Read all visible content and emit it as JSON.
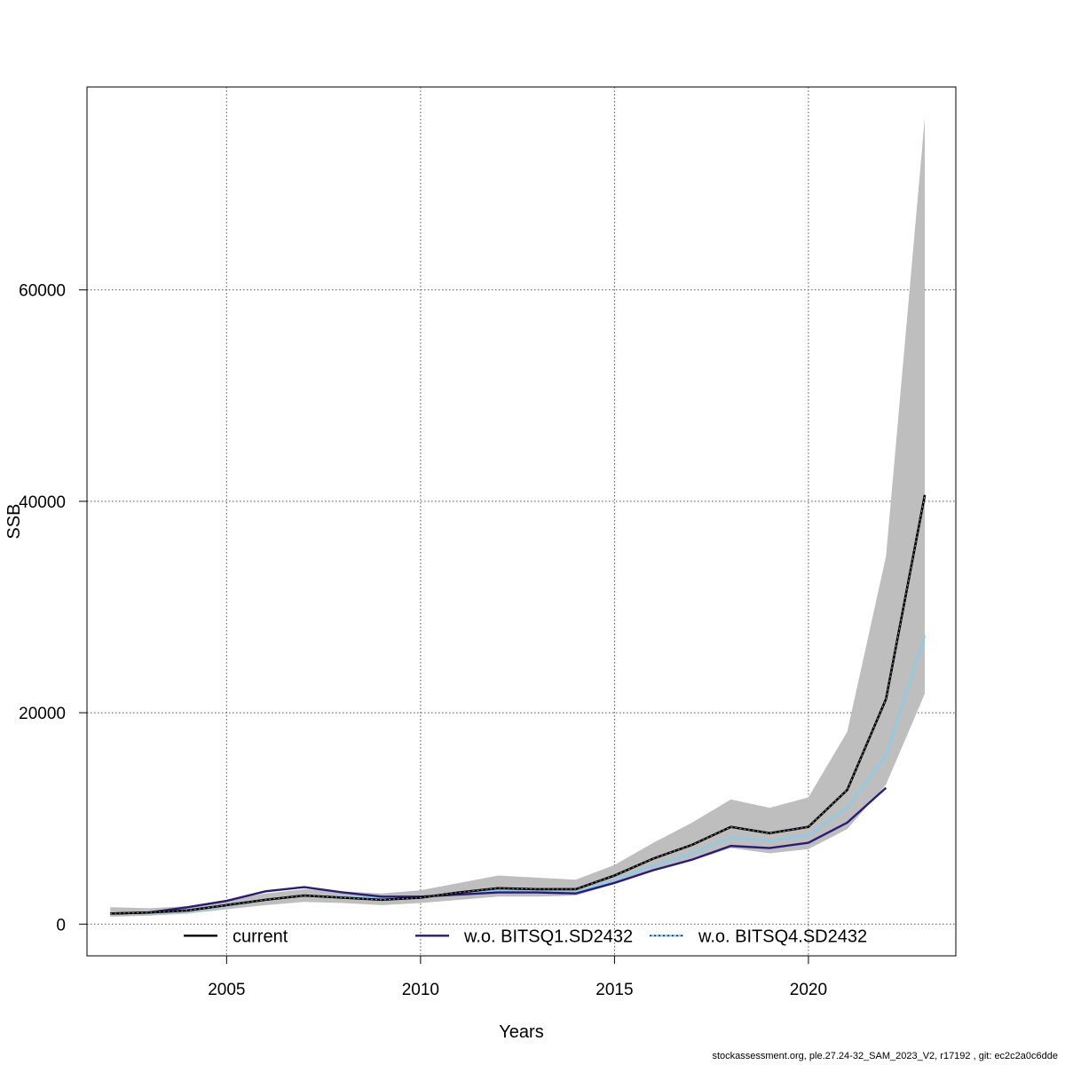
{
  "footer_text": "stockassessment.org, ple.27.24-32_SAM_2023_V2, r17192 , git: ec2c2a0c6dde",
  "colors": {
    "band": "#bebebe",
    "current": "#000000",
    "wo_q1": "#2a1a7a",
    "wo_q4": "#87ceeb",
    "grid": "#555555"
  },
  "chart_data": {
    "type": "line",
    "title": "",
    "xlabel": "Years",
    "ylabel": "SSB",
    "xlim": [
      2001.4,
      2023.8
    ],
    "ylim": [
      -3000,
      79200
    ],
    "x_ticks": [
      2005,
      2010,
      2015,
      2020
    ],
    "y_ticks": [
      0,
      20000,
      40000,
      60000
    ],
    "grid": true,
    "legend_position": "bottom",
    "x": [
      2002,
      2003,
      2004,
      2005,
      2006,
      2007,
      2008,
      2009,
      2010,
      2011,
      2012,
      2013,
      2014,
      2015,
      2016,
      2017,
      2018,
      2019,
      2020,
      2021,
      2022,
      2023
    ],
    "confidence_band": {
      "lower": [
        700,
        800,
        1000,
        1400,
        1800,
        2100,
        2000,
        1800,
        2000,
        2300,
        2600,
        2600,
        2700,
        3800,
        5000,
        6000,
        7200,
        6700,
        7100,
        9000,
        13200,
        21800
      ],
      "upper": [
        1600,
        1500,
        1700,
        2300,
        2900,
        3300,
        3100,
        2900,
        3200,
        3900,
        4600,
        4400,
        4200,
        5600,
        7700,
        9600,
        11800,
        11000,
        12000,
        18200,
        34800,
        76300
      ]
    },
    "series": [
      {
        "name": "current",
        "style": "solid",
        "values": [
          1000,
          1100,
          1300,
          1800,
          2300,
          2700,
          2500,
          2300,
          2500,
          3000,
          3400,
          3300,
          3300,
          4600,
          6200,
          7500,
          9200,
          8600,
          9200,
          12700,
          21300,
          40600
        ]
      },
      {
        "name": "w.o. BITSQ1.SD2432",
        "style": "solid",
        "values": [
          1000,
          1100,
          1600,
          2200,
          3100,
          3500,
          3000,
          2600,
          2600,
          2800,
          3000,
          3000,
          2900,
          3900,
          5100,
          6100,
          7400,
          7200,
          7700,
          9600,
          12900,
          null
        ]
      },
      {
        "name": "w.o. BITSQ4.SD2432",
        "style": "dotted",
        "values": [
          1000,
          1050,
          1200,
          1700,
          2300,
          2700,
          2600,
          2500,
          2600,
          2900,
          3200,
          3100,
          3000,
          4200,
          5500,
          6700,
          8200,
          7900,
          8400,
          11000,
          16000,
          27300
        ]
      }
    ]
  }
}
